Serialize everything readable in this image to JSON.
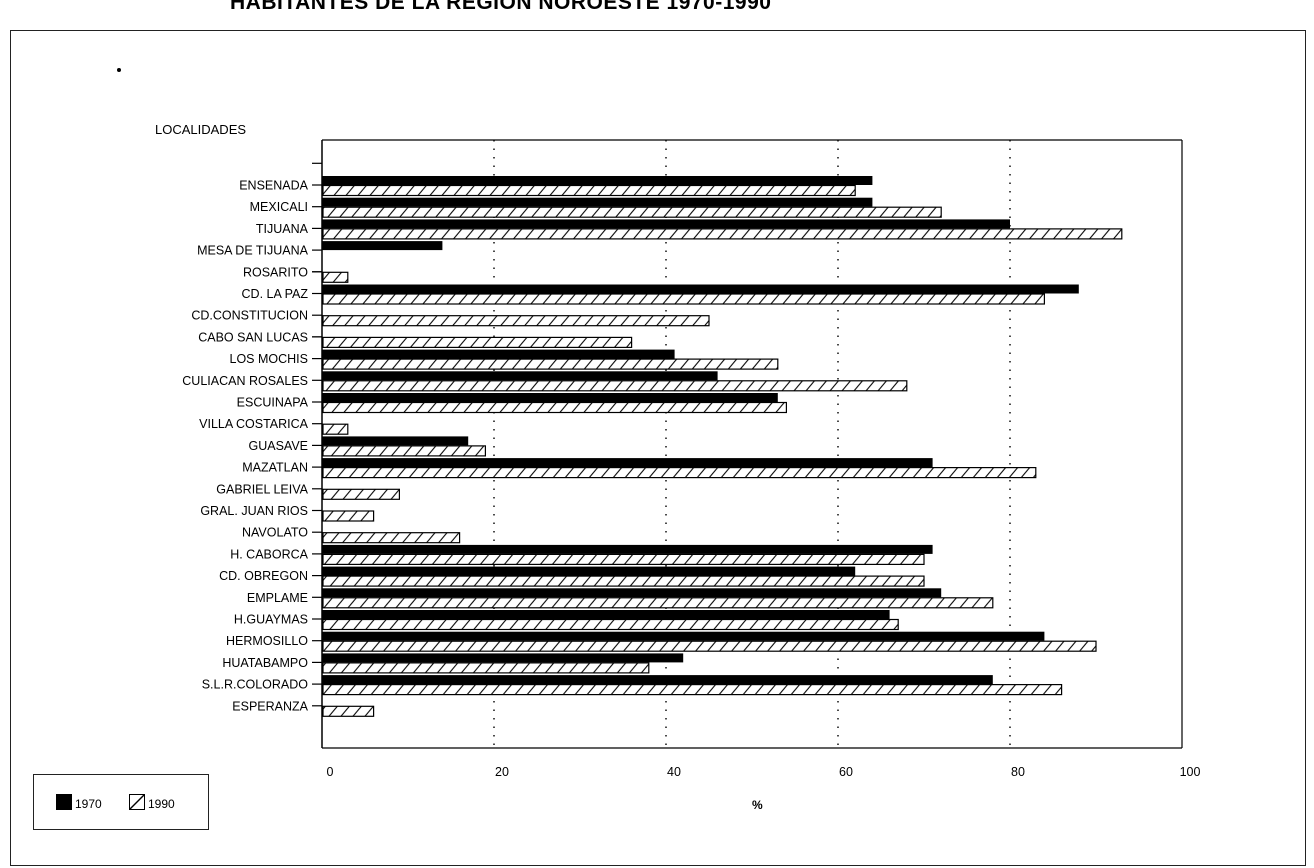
{
  "chart_data": {
    "type": "bar",
    "orientation": "horizontal",
    "title": "HABITANTES DE LA REGION NOROESTE 1970-1990",
    "ytitle": "LOCALIDADES",
    "xlabel": "%",
    "xlim": [
      0,
      100
    ],
    "xticks": [
      0,
      20,
      40,
      60,
      80,
      100
    ],
    "grid": "vertical dotted",
    "legend_position": "bottom-left",
    "categories": [
      "ENSENADA",
      "MEXICALI",
      "TIJUANA",
      "MESA DE TIJUANA",
      "ROSARITO",
      "CD. LA PAZ",
      "CD.CONSTITUCION",
      "CABO SAN LUCAS",
      "LOS MOCHIS",
      "CULIACAN ROSALES",
      "ESCUINAPA",
      "VILLA COSTARICA",
      "GUASAVE",
      "MAZATLAN",
      "GABRIEL LEIVA",
      "GRAL. JUAN RIOS",
      "NAVOLATO",
      "H. CABORCA",
      "CD. OBREGON",
      "EMPLAME",
      "H.GUAYMAS",
      "HERMOSILLO",
      "HUATABAMPO",
      "S.L.R.COLORADO",
      "ESPERANZA"
    ],
    "group_breaks_before": [
      0,
      5,
      8
    ],
    "series": [
      {
        "name": "1970",
        "color": "#000000",
        "pattern": "solid",
        "values": [
          64,
          64,
          80,
          14,
          null,
          88,
          null,
          null,
          41,
          46,
          53,
          null,
          17,
          71,
          null,
          null,
          null,
          71,
          62,
          72,
          66,
          84,
          42,
          78,
          null
        ]
      },
      {
        "name": "1990",
        "color": "#000000",
        "pattern": "hatch",
        "values": [
          62,
          72,
          93,
          null,
          3,
          84,
          45,
          36,
          53,
          68,
          54,
          3,
          19,
          83,
          9,
          6,
          16,
          70,
          70,
          78,
          67,
          90,
          38,
          86,
          6
        ]
      }
    ]
  }
}
